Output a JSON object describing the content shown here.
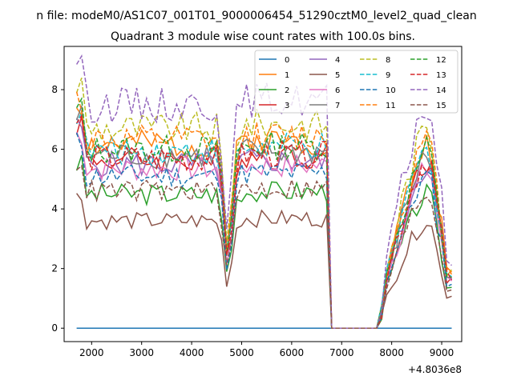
{
  "figure": {
    "suptitle": "n file: modeM0/AS1C07_001T01_9000006454_51290cztM0_level2_quad_clean",
    "title": "Quadrant 3 module wise count rates with 100.0s bins.",
    "offset_label": "+4.8036e8"
  },
  "chart_data": {
    "type": "line",
    "title": "Quadrant 3 module wise count rates with 100.0s bins.",
    "xlabel": "",
    "ylabel": "",
    "x_offset": 480360000,
    "xlim": [
      1450,
      9400
    ],
    "ylim": [
      -0.45,
      9.45
    ],
    "x_ticks": [
      2000,
      3000,
      4000,
      5000,
      6000,
      7000,
      8000,
      9000
    ],
    "y_ticks": [
      0,
      2,
      4,
      6,
      8
    ],
    "x_tick_labels": [
      "2000",
      "3000",
      "4000",
      "5000",
      "6000",
      "7000",
      "8000",
      "9000"
    ],
    "y_tick_labels": [
      "0",
      "2",
      "4",
      "6",
      "8"
    ],
    "grid": false,
    "legend_position": "top-right",
    "gaps": [
      [
        6800,
        7800
      ]
    ],
    "series": [
      {
        "name": "0",
        "color": "#1f77b4",
        "dash": "solid",
        "level": 0,
        "dip": 0,
        "seed": 1
      },
      {
        "name": "1",
        "color": "#ff7f0e",
        "dash": "solid",
        "level": 6.15,
        "dip": 2.1,
        "seed": 2
      },
      {
        "name": "2",
        "color": "#2ca02c",
        "dash": "solid",
        "level": 4.5,
        "dip": 1.7,
        "seed": 3
      },
      {
        "name": "3",
        "color": "#d62728",
        "dash": "solid",
        "level": 5.65,
        "dip": 2.0,
        "seed": 4
      },
      {
        "name": "4",
        "color": "#9467bd",
        "dash": "solid",
        "level": 5.5,
        "dip": 2.0,
        "seed": 5
      },
      {
        "name": "5",
        "color": "#8c564b",
        "dash": "solid",
        "level": 3.6,
        "dip": 1.5,
        "seed": 6
      },
      {
        "name": "6",
        "color": "#e377c2",
        "dash": "solid",
        "level": 5.35,
        "dip": 2.0,
        "seed": 7
      },
      {
        "name": "7",
        "color": "#7f7f7f",
        "dash": "solid",
        "level": 5.8,
        "dip": 2.1,
        "seed": 8
      },
      {
        "name": "8",
        "color": "#bcbd22",
        "dash": "dashed",
        "level": 6.7,
        "dip": 2.3,
        "seed": 9
      },
      {
        "name": "9",
        "color": "#17becf",
        "dash": "dashed",
        "level": 5.95,
        "dip": 2.1,
        "seed": 10
      },
      {
        "name": "10",
        "color": "#1f77b4",
        "dash": "dashed",
        "level": 5.1,
        "dip": 1.9,
        "seed": 11
      },
      {
        "name": "11",
        "color": "#ff7f0e",
        "dash": "dashed",
        "level": 6.3,
        "dip": 2.2,
        "seed": 12
      },
      {
        "name": "12",
        "color": "#2ca02c",
        "dash": "dashed",
        "level": 6.0,
        "dip": 2.1,
        "seed": 13
      },
      {
        "name": "13",
        "color": "#d62728",
        "dash": "dashed",
        "level": 5.7,
        "dip": 2.0,
        "seed": 14
      },
      {
        "name": "14",
        "color": "#9467bd",
        "dash": "dashed",
        "level": 7.5,
        "dip": 2.5,
        "seed": 15
      },
      {
        "name": "15",
        "color": "#8c564b",
        "dash": "dashed",
        "level": 4.6,
        "dip": 1.8,
        "seed": 16
      }
    ]
  }
}
